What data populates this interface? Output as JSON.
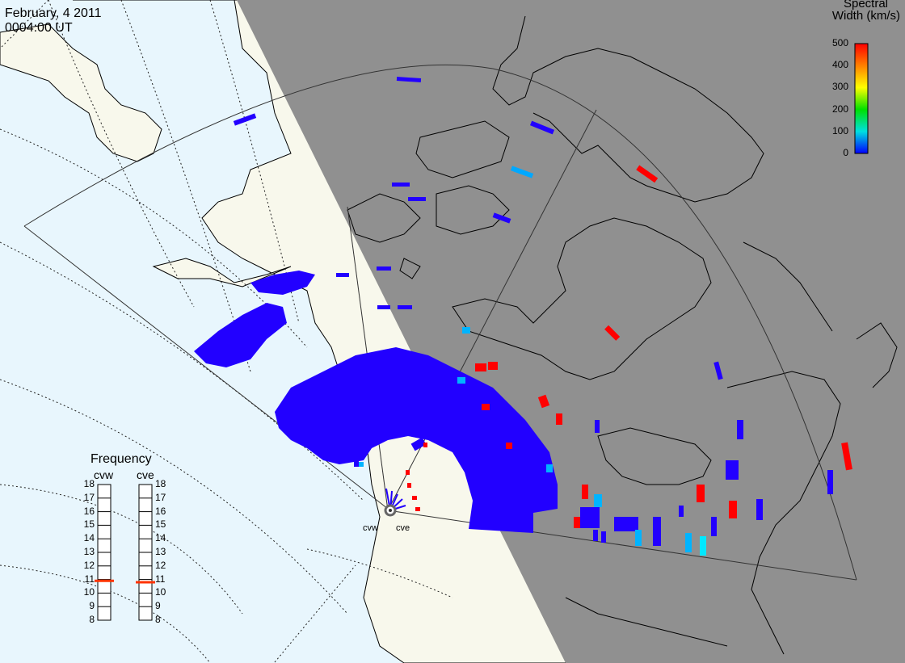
{
  "title": {
    "date": "February, 4 2011",
    "time": "0004:00 UT"
  },
  "colorbar": {
    "title_line1": "Spectral",
    "title_line2": "Width (km/s)",
    "ticks": [
      "500",
      "400",
      "300",
      "200",
      "100",
      "0"
    ],
    "colors": [
      "#ff0000",
      "#ff8000",
      "#ffff00",
      "#00e000",
      "#00e0e0",
      "#0000ff"
    ]
  },
  "frequency": {
    "title": "Frequency",
    "radars": [
      "cvw",
      "cve"
    ],
    "scale": [
      "18",
      "17",
      "16",
      "15",
      "14",
      "13",
      "12",
      "11",
      "10",
      "9",
      "8"
    ],
    "cvw_value_mhz": 10.9,
    "cve_value_mhz": 10.8,
    "marker_color": "#ff3300"
  },
  "stations": [
    "cvw",
    "cve"
  ],
  "map_colors": {
    "ocean": "#e8f6fd",
    "land": "#f8f8ec",
    "night": "#909090",
    "scatter_low": "#2200ff",
    "scatter_mid": "#00b4ff",
    "scatter_high": "#ff0000"
  }
}
